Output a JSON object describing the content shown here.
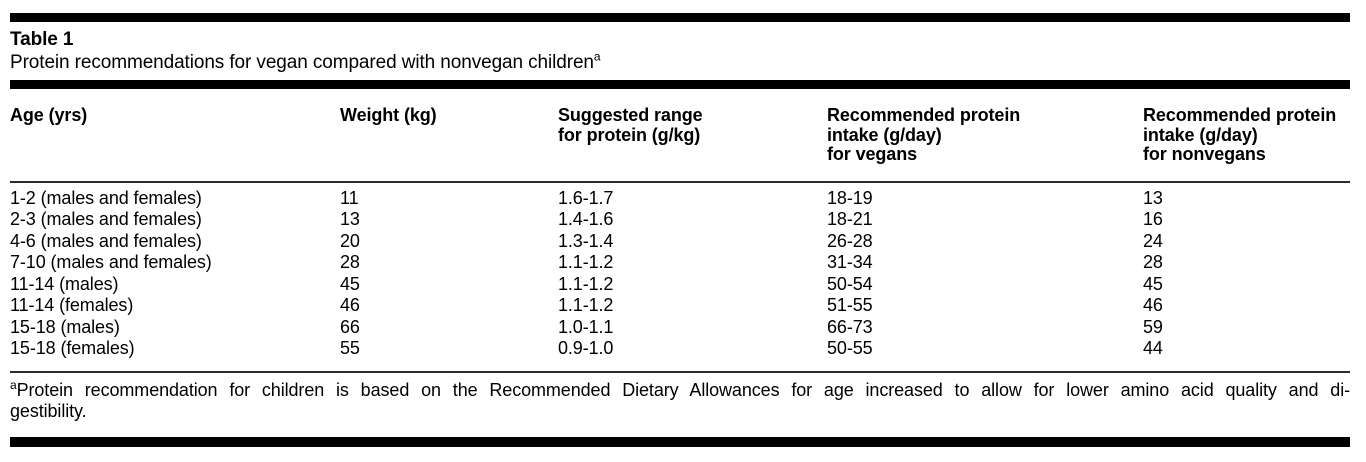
{
  "document": {
    "table_label": "Table 1",
    "caption": "Protein recommendations for vegan compared with nonvegan children",
    "caption_marker": "a"
  },
  "table": {
    "columns": [
      "Age (yrs)",
      "Weight (kg)",
      "Suggested range\nfor protein (g/kg)",
      "Recommended protein\nintake (g/day)\nfor vegans",
      "Recommended protein\nintake (g/day)\nfor nonvegans"
    ],
    "rows": [
      [
        "1-2 (males and females)",
        "11",
        "1.6-1.7",
        "18-19",
        "13"
      ],
      [
        "2-3 (males and females)",
        "13",
        "1.4-1.6",
        "18-21",
        "16"
      ],
      [
        "4-6 (males and females)",
        "20",
        "1.3-1.4",
        "26-28",
        "24"
      ],
      [
        "7-10 (males and females)",
        "28",
        "1.1-1.2",
        "31-34",
        "28"
      ],
      [
        "11-14 (males)",
        "45",
        "1.1-1.2",
        "50-54",
        "45"
      ],
      [
        "11-14 (females)",
        "46",
        "1.1-1.2",
        "51-55",
        "46"
      ],
      [
        "15-18 (males)",
        "66",
        "1.0-1.1",
        "66-73",
        "59"
      ],
      [
        "15-18 (females)",
        "55",
        "0.9-1.0",
        "50-55",
        "44"
      ]
    ]
  },
  "footnote": {
    "marker": "a",
    "line1": "Protein recommendation for children is based on the Recommended Dietary Allowances for age increased to allow for lower amino acid quality and di-",
    "line2": "gestibility."
  },
  "colors": {
    "text": "#000000",
    "background": "#ffffff",
    "thick_rule": "#000000",
    "thin_rule": "#2b2b2b"
  }
}
